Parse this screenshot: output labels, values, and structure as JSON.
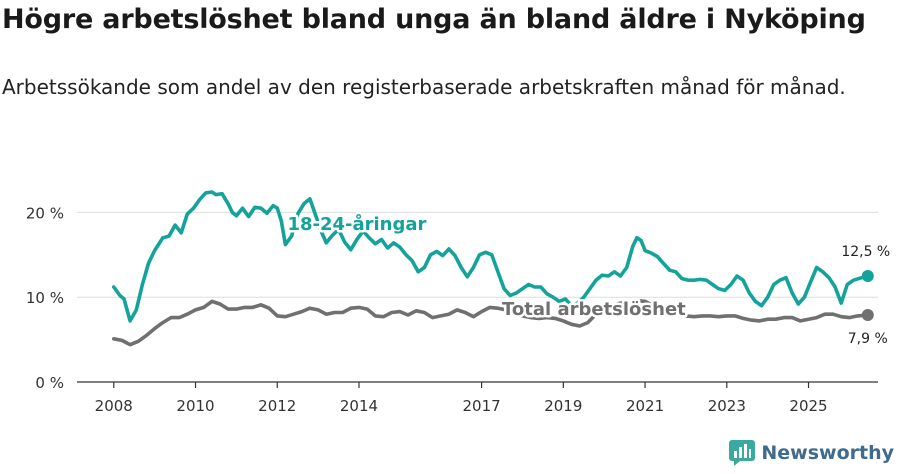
{
  "title": "Högre arbetslöshet bland unga än bland äldre i Nyköping",
  "subtitle": "Arbetssökande som andel av den registerbaserade arbetskraften månad för månad.",
  "brand": {
    "name": "Newsworthy",
    "logo_icon": "newsworthy-logo-icon"
  },
  "colors": {
    "youth": "#14a39a",
    "total": "#707070",
    "grid": "#dddddd",
    "axis": "#333333"
  },
  "chart_data": {
    "type": "line",
    "title": "Högre arbetslöshet bland unga än bland äldre i Nyköping",
    "xlabel": "",
    "ylabel": "",
    "x_ticks": [
      "2008",
      "2010",
      "2012",
      "2014",
      "2017",
      "2019",
      "2021",
      "2023",
      "2025"
    ],
    "x_tick_values": [
      2008,
      2010,
      2012,
      2014,
      2017,
      2019,
      2021,
      2023,
      2025
    ],
    "xlim": [
      2007.1,
      2026.7
    ],
    "y_ticks": [
      "0 %",
      "10 %",
      "20 %"
    ],
    "y_tick_values": [
      0,
      10,
      20
    ],
    "ylim": [
      0,
      25
    ],
    "series": [
      {
        "name": "18-24-åringar",
        "label": "18-24-åringar",
        "end_label": "12,5 %",
        "points": [
          [
            2008.0,
            11.2
          ],
          [
            2008.15,
            10.2
          ],
          [
            2008.25,
            9.8
          ],
          [
            2008.4,
            7.2
          ],
          [
            2008.55,
            8.5
          ],
          [
            2008.7,
            11.5
          ],
          [
            2008.85,
            14.0
          ],
          [
            2009.0,
            15.5
          ],
          [
            2009.2,
            17.0
          ],
          [
            2009.35,
            17.2
          ],
          [
            2009.5,
            18.5
          ],
          [
            2009.65,
            17.6
          ],
          [
            2009.8,
            19.8
          ],
          [
            2009.95,
            20.5
          ],
          [
            2010.1,
            21.5
          ],
          [
            2010.25,
            22.3
          ],
          [
            2010.4,
            22.4
          ],
          [
            2010.5,
            22.1
          ],
          [
            2010.65,
            22.2
          ],
          [
            2010.8,
            21.0
          ],
          [
            2010.9,
            20.0
          ],
          [
            2011.0,
            19.6
          ],
          [
            2011.15,
            20.5
          ],
          [
            2011.3,
            19.5
          ],
          [
            2011.45,
            20.6
          ],
          [
            2011.6,
            20.5
          ],
          [
            2011.75,
            19.9
          ],
          [
            2011.9,
            20.8
          ],
          [
            2012.0,
            20.5
          ],
          [
            2012.1,
            19.0
          ],
          [
            2012.2,
            16.2
          ],
          [
            2012.35,
            17.2
          ],
          [
            2012.5,
            19.8
          ],
          [
            2012.65,
            21.0
          ],
          [
            2012.8,
            21.6
          ],
          [
            2012.95,
            19.5
          ],
          [
            2013.1,
            17.5
          ],
          [
            2013.2,
            16.4
          ],
          [
            2013.35,
            17.3
          ],
          [
            2013.5,
            18.0
          ],
          [
            2013.65,
            16.5
          ],
          [
            2013.8,
            15.6
          ],
          [
            2013.95,
            16.8
          ],
          [
            2014.1,
            17.8
          ],
          [
            2014.25,
            17.0
          ],
          [
            2014.4,
            16.3
          ],
          [
            2014.55,
            16.8
          ],
          [
            2014.7,
            15.8
          ],
          [
            2014.85,
            16.4
          ],
          [
            2015.0,
            15.9
          ],
          [
            2015.15,
            15.0
          ],
          [
            2015.3,
            14.3
          ],
          [
            2015.45,
            13.0
          ],
          [
            2015.6,
            13.5
          ],
          [
            2015.75,
            15.0
          ],
          [
            2015.9,
            15.4
          ],
          [
            2016.05,
            14.9
          ],
          [
            2016.2,
            15.7
          ],
          [
            2016.35,
            14.9
          ],
          [
            2016.5,
            13.5
          ],
          [
            2016.65,
            12.4
          ],
          [
            2016.8,
            13.5
          ],
          [
            2016.95,
            15.0
          ],
          [
            2017.1,
            15.3
          ],
          [
            2017.25,
            15.0
          ],
          [
            2017.4,
            13.0
          ],
          [
            2017.55,
            11.0
          ],
          [
            2017.7,
            10.2
          ],
          [
            2017.85,
            10.5
          ],
          [
            2018.0,
            11.0
          ],
          [
            2018.15,
            11.5
          ],
          [
            2018.3,
            11.2
          ],
          [
            2018.45,
            11.2
          ],
          [
            2018.6,
            10.4
          ],
          [
            2018.75,
            10.0
          ],
          [
            2018.9,
            9.5
          ],
          [
            2019.05,
            9.8
          ],
          [
            2019.2,
            9.0
          ],
          [
            2019.35,
            9.3
          ],
          [
            2019.5,
            10.0
          ],
          [
            2019.65,
            11.0
          ],
          [
            2019.8,
            12.0
          ],
          [
            2019.95,
            12.6
          ],
          [
            2020.1,
            12.5
          ],
          [
            2020.25,
            13.0
          ],
          [
            2020.4,
            12.5
          ],
          [
            2020.55,
            13.5
          ],
          [
            2020.7,
            16.0
          ],
          [
            2020.8,
            17.0
          ],
          [
            2020.9,
            16.7
          ],
          [
            2021.0,
            15.5
          ],
          [
            2021.15,
            15.2
          ],
          [
            2021.3,
            14.8
          ],
          [
            2021.45,
            14.0
          ],
          [
            2021.6,
            13.2
          ],
          [
            2021.75,
            13.0
          ],
          [
            2021.9,
            12.2
          ],
          [
            2022.05,
            12.0
          ],
          [
            2022.2,
            12.0
          ],
          [
            2022.35,
            12.1
          ],
          [
            2022.5,
            12.0
          ],
          [
            2022.65,
            11.5
          ],
          [
            2022.8,
            11.0
          ],
          [
            2022.95,
            10.8
          ],
          [
            2023.1,
            11.5
          ],
          [
            2023.25,
            12.5
          ],
          [
            2023.4,
            12.0
          ],
          [
            2023.55,
            10.5
          ],
          [
            2023.7,
            9.5
          ],
          [
            2023.85,
            9.0
          ],
          [
            2024.0,
            10.0
          ],
          [
            2024.15,
            11.5
          ],
          [
            2024.3,
            12.0
          ],
          [
            2024.45,
            12.3
          ],
          [
            2024.6,
            10.5
          ],
          [
            2024.75,
            9.2
          ],
          [
            2024.9,
            10.0
          ],
          [
            2025.05,
            11.8
          ],
          [
            2025.2,
            13.5
          ],
          [
            2025.35,
            13.0
          ],
          [
            2025.5,
            12.3
          ],
          [
            2025.65,
            11.2
          ],
          [
            2025.8,
            9.3
          ],
          [
            2025.95,
            11.5
          ],
          [
            2026.1,
            12.0
          ],
          [
            2026.3,
            12.3
          ],
          [
            2026.45,
            12.5
          ]
        ]
      },
      {
        "name": "Total arbetslöshet",
        "label": "Total arbetslöshet",
        "end_label": "7,9 %",
        "points": [
          [
            2008.0,
            5.1
          ],
          [
            2008.2,
            4.9
          ],
          [
            2008.4,
            4.4
          ],
          [
            2008.6,
            4.8
          ],
          [
            2008.8,
            5.5
          ],
          [
            2009.0,
            6.3
          ],
          [
            2009.2,
            7.0
          ],
          [
            2009.4,
            7.6
          ],
          [
            2009.6,
            7.6
          ],
          [
            2009.8,
            8.0
          ],
          [
            2010.0,
            8.5
          ],
          [
            2010.2,
            8.8
          ],
          [
            2010.4,
            9.5
          ],
          [
            2010.6,
            9.2
          ],
          [
            2010.8,
            8.6
          ],
          [
            2011.0,
            8.6
          ],
          [
            2011.2,
            8.8
          ],
          [
            2011.4,
            8.8
          ],
          [
            2011.6,
            9.1
          ],
          [
            2011.8,
            8.7
          ],
          [
            2012.0,
            7.8
          ],
          [
            2012.2,
            7.7
          ],
          [
            2012.4,
            8.0
          ],
          [
            2012.6,
            8.3
          ],
          [
            2012.8,
            8.7
          ],
          [
            2013.0,
            8.5
          ],
          [
            2013.2,
            8.0
          ],
          [
            2013.4,
            8.2
          ],
          [
            2013.6,
            8.2
          ],
          [
            2013.8,
            8.7
          ],
          [
            2014.0,
            8.8
          ],
          [
            2014.2,
            8.6
          ],
          [
            2014.4,
            7.8
          ],
          [
            2014.6,
            7.7
          ],
          [
            2014.8,
            8.2
          ],
          [
            2015.0,
            8.3
          ],
          [
            2015.2,
            7.9
          ],
          [
            2015.4,
            8.4
          ],
          [
            2015.6,
            8.2
          ],
          [
            2015.8,
            7.6
          ],
          [
            2016.0,
            7.8
          ],
          [
            2016.2,
            8.0
          ],
          [
            2016.4,
            8.5
          ],
          [
            2016.6,
            8.2
          ],
          [
            2016.8,
            7.7
          ],
          [
            2017.0,
            8.3
          ],
          [
            2017.2,
            8.8
          ],
          [
            2017.4,
            8.7
          ],
          [
            2017.6,
            8.5
          ],
          [
            2017.8,
            8.0
          ],
          [
            2018.0,
            7.8
          ],
          [
            2018.2,
            7.6
          ],
          [
            2018.4,
            7.5
          ],
          [
            2018.6,
            7.6
          ],
          [
            2018.8,
            7.5
          ],
          [
            2019.0,
            7.2
          ],
          [
            2019.2,
            6.8
          ],
          [
            2019.4,
            6.6
          ],
          [
            2019.6,
            7.0
          ],
          [
            2019.8,
            8.0
          ],
          [
            2020.0,
            8.3
          ],
          [
            2020.2,
            9.0
          ],
          [
            2020.4,
            9.3
          ],
          [
            2020.6,
            9.3
          ],
          [
            2020.8,
            9.6
          ],
          [
            2021.0,
            9.5
          ],
          [
            2021.2,
            9.0
          ],
          [
            2021.4,
            8.6
          ],
          [
            2021.6,
            8.3
          ],
          [
            2021.8,
            8.0
          ],
          [
            2022.0,
            7.8
          ],
          [
            2022.2,
            7.7
          ],
          [
            2022.4,
            7.8
          ],
          [
            2022.6,
            7.8
          ],
          [
            2022.8,
            7.7
          ],
          [
            2023.0,
            7.8
          ],
          [
            2023.2,
            7.8
          ],
          [
            2023.4,
            7.5
          ],
          [
            2023.6,
            7.3
          ],
          [
            2023.8,
            7.2
          ],
          [
            2024.0,
            7.4
          ],
          [
            2024.2,
            7.4
          ],
          [
            2024.4,
            7.6
          ],
          [
            2024.6,
            7.6
          ],
          [
            2024.8,
            7.2
          ],
          [
            2025.0,
            7.4
          ],
          [
            2025.2,
            7.6
          ],
          [
            2025.4,
            8.0
          ],
          [
            2025.6,
            8.0
          ],
          [
            2025.8,
            7.7
          ],
          [
            2026.0,
            7.6
          ],
          [
            2026.2,
            7.8
          ],
          [
            2026.45,
            7.9
          ]
        ]
      }
    ]
  }
}
